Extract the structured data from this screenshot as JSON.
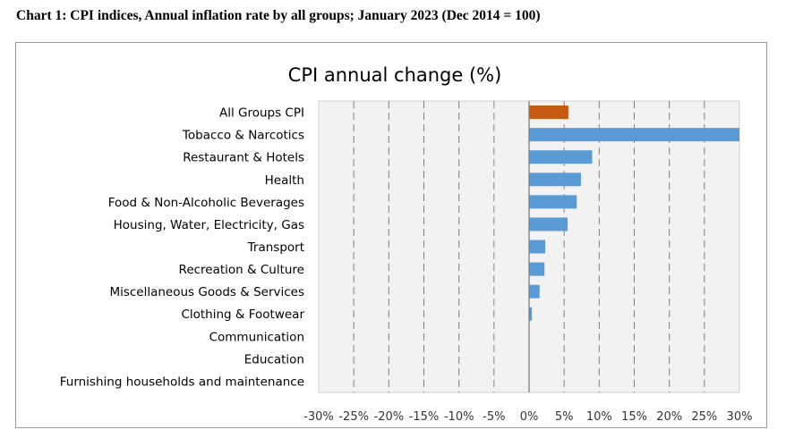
{
  "page": {
    "heading": "Chart 1: CPI indices, Annual inflation rate by all groups; January 2023 (Dec 2014 = 100)"
  },
  "chart_data": {
    "type": "bar",
    "orientation": "horizontal",
    "title": "CPI annual change (%)",
    "xlabel": "",
    "ylabel": "",
    "xlim": [
      -30,
      30
    ],
    "tick_values": [
      -30,
      -25,
      -20,
      -15,
      -10,
      -5,
      0,
      5,
      10,
      15,
      20,
      25,
      30
    ],
    "tick_labels": [
      "-30%",
      "-25%",
      "-20%",
      "-15%",
      "-10%",
      "-5%",
      "0%",
      "5%",
      "10%",
      "15%",
      "20%",
      "25%",
      "30%"
    ],
    "grid": "dashed vertical",
    "categories": [
      "All Groups CPI",
      "Tobacco & Narcotics",
      "Restaurant & Hotels",
      "Health",
      "Food & Non-Alcoholic Beverages",
      "Housing, Water, Electricity, Gas",
      "Transport",
      "Recreation & Culture",
      "Miscellaneous Goods & Services",
      "Clothing & Footwear",
      "Communication",
      "Education",
      "Furnishing households and maintenance"
    ],
    "values": [
      5.6,
      30.0,
      9.0,
      7.4,
      6.8,
      5.5,
      2.3,
      2.2,
      1.5,
      0.4,
      0.0,
      0.0,
      0.0
    ],
    "colors": [
      "#c55a11",
      "#5b9bd5",
      "#5b9bd5",
      "#5b9bd5",
      "#5b9bd5",
      "#5b9bd5",
      "#5b9bd5",
      "#5b9bd5",
      "#5b9bd5",
      "#5b9bd5",
      "#5b9bd5",
      "#5b9bd5",
      "#5b9bd5"
    ]
  }
}
